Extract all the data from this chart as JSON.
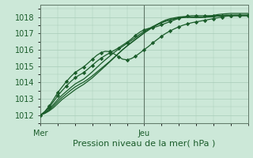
{
  "xlabel": "Pression niveau de la mer( hPa )",
  "background_color": "#cce8d8",
  "grid_color": "#a8ccb8",
  "line_color": "#1a5c2a",
  "vline_color": "#607868",
  "ylim": [
    1011.5,
    1018.75
  ],
  "xlim": [
    0,
    48
  ],
  "yticks": [
    1012,
    1013,
    1014,
    1015,
    1016,
    1017,
    1018
  ],
  "xtick_positions": [
    0,
    24,
    48
  ],
  "xtick_labels": [
    "Mer",
    "Jeu",
    ""
  ],
  "vline_x": 24,
  "series": [
    [
      1012.0,
      1012.1,
      1012.25,
      1012.45,
      1012.7,
      1012.95,
      1013.15,
      1013.35,
      1013.55,
      1013.72,
      1013.88,
      1014.08,
      1014.28,
      1014.52,
      1014.76,
      1015.0,
      1015.25,
      1015.5,
      1015.75,
      1016.0,
      1016.22,
      1016.42,
      1016.62,
      1016.82,
      1017.02,
      1017.2,
      1017.38,
      1017.55,
      1017.7,
      1017.82,
      1017.9,
      1017.95,
      1018.0,
      1018.02,
      1018.0,
      1017.98,
      1017.97,
      1017.98,
      1018.0,
      1018.05,
      1018.1,
      1018.15,
      1018.18,
      1018.2,
      1018.22,
      1018.22,
      1018.22,
      1018.22,
      1018.22
    ],
    [
      1012.0,
      1012.12,
      1012.3,
      1012.55,
      1012.82,
      1013.08,
      1013.3,
      1013.52,
      1013.72,
      1013.88,
      1014.02,
      1014.2,
      1014.4,
      1014.62,
      1014.84,
      1015.06,
      1015.28,
      1015.52,
      1015.76,
      1016.0,
      1016.22,
      1016.44,
      1016.65,
      1016.85,
      1017.05,
      1017.22,
      1017.38,
      1017.52,
      1017.65,
      1017.75,
      1017.83,
      1017.9,
      1017.95,
      1017.98,
      1018.0,
      1018.0,
      1018.0,
      1018.0,
      1018.0,
      1018.02,
      1018.05,
      1018.08,
      1018.1,
      1018.12,
      1018.12,
      1018.12,
      1018.12,
      1018.12,
      1018.12
    ],
    [
      1012.0,
      1012.15,
      1012.38,
      1012.65,
      1012.95,
      1013.22,
      1013.45,
      1013.68,
      1013.9,
      1014.05,
      1014.2,
      1014.42,
      1014.65,
      1014.9,
      1015.15,
      1015.38,
      1015.6,
      1015.82,
      1016.02,
      1016.2,
      1016.38,
      1016.56,
      1016.75,
      1016.95,
      1017.12,
      1017.28,
      1017.42,
      1017.55,
      1017.65,
      1017.75,
      1017.82,
      1017.88,
      1017.93,
      1017.96,
      1017.98,
      1017.98,
      1017.98,
      1017.98,
      1017.98,
      1018.0,
      1018.02,
      1018.05,
      1018.07,
      1018.08,
      1018.08,
      1018.08,
      1018.08,
      1018.08,
      1018.08
    ],
    [
      1012.0,
      1012.2,
      1012.48,
      1012.82,
      1013.18,
      1013.5,
      1013.78,
      1014.05,
      1014.28,
      1014.45,
      1014.6,
      1014.82,
      1015.05,
      1015.28,
      1015.48,
      1015.65,
      1015.8,
      1015.95,
      1016.1,
      1016.28,
      1016.45,
      1016.65,
      1016.88,
      1017.08,
      1017.22,
      1017.3,
      1017.35,
      1017.42,
      1017.52,
      1017.62,
      1017.72,
      1017.82,
      1017.92,
      1018.0,
      1018.05,
      1018.08,
      1018.08,
      1018.08,
      1018.08,
      1018.08,
      1018.08,
      1018.08,
      1018.08,
      1018.08,
      1018.08,
      1018.08,
      1018.08,
      1018.08,
      1018.08
    ],
    [
      1012.0,
      1012.22,
      1012.55,
      1012.95,
      1013.38,
      1013.72,
      1014.05,
      1014.35,
      1014.6,
      1014.78,
      1014.95,
      1015.18,
      1015.42,
      1015.65,
      1015.82,
      1015.9,
      1015.88,
      1015.75,
      1015.58,
      1015.42,
      1015.38,
      1015.45,
      1015.6,
      1015.8,
      1016.0,
      1016.2,
      1016.42,
      1016.62,
      1016.82,
      1017.0,
      1017.15,
      1017.28,
      1017.4,
      1017.5,
      1017.58,
      1017.65,
      1017.7,
      1017.75,
      1017.8,
      1017.85,
      1017.9,
      1017.95,
      1018.0,
      1018.05,
      1018.08,
      1018.1,
      1018.1,
      1018.1,
      1018.1
    ]
  ],
  "marker_style": "D",
  "marker_size": 2.2,
  "xlabel_fontsize": 8,
  "tick_fontsize": 7
}
